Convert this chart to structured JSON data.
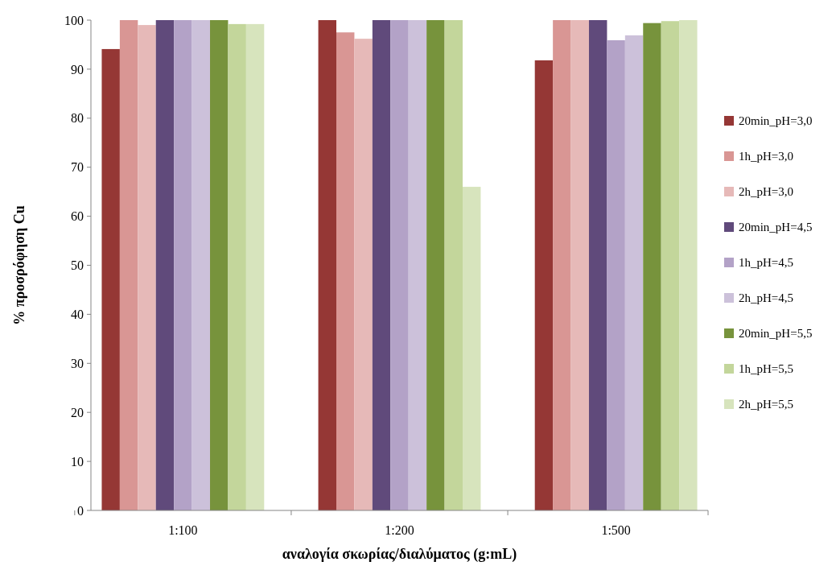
{
  "chart_data": {
    "type": "bar",
    "xlabel": "αναλογία σκωρίας/διαλύματος (g:mL)",
    "ylabel": "% προσρόφηση Cu",
    "categories": [
      "1:100",
      "1:200",
      "1:500"
    ],
    "series": [
      {
        "name": "20min_pH=3,0",
        "color": "#953735",
        "values": [
          94.1,
          100,
          91.8
        ]
      },
      {
        "name": "1h_pH=3,0",
        "color": "#d99694",
        "values": [
          100,
          97.5,
          100
        ]
      },
      {
        "name": "2h_pH=3,0",
        "color": "#e6b9b8",
        "values": [
          99.0,
          96.2,
          100
        ]
      },
      {
        "name": "20min_pH=4,5",
        "color": "#604a7b",
        "values": [
          100,
          100,
          100
        ]
      },
      {
        "name": "1h_pH=4,5",
        "color": "#b3a2c7",
        "values": [
          100,
          100,
          95.9
        ]
      },
      {
        "name": "2h_pH=4,5",
        "color": "#ccc1da",
        "values": [
          100,
          100,
          96.9
        ]
      },
      {
        "name": "20min_pH=5,5",
        "color": "#77933c",
        "values": [
          100,
          100,
          99.4
        ]
      },
      {
        "name": "1h_pH=5,5",
        "color": "#c3d69b",
        "values": [
          99.2,
          100,
          99.8
        ]
      },
      {
        "name": "2h_pH=5,5",
        "color": "#d7e4bd",
        "values": [
          99.2,
          66,
          100
        ]
      }
    ],
    "ylim": [
      0,
      100
    ],
    "yticks": [
      0,
      10,
      20,
      30,
      40,
      50,
      60,
      70,
      80,
      90,
      100
    ],
    "legend": "right"
  }
}
